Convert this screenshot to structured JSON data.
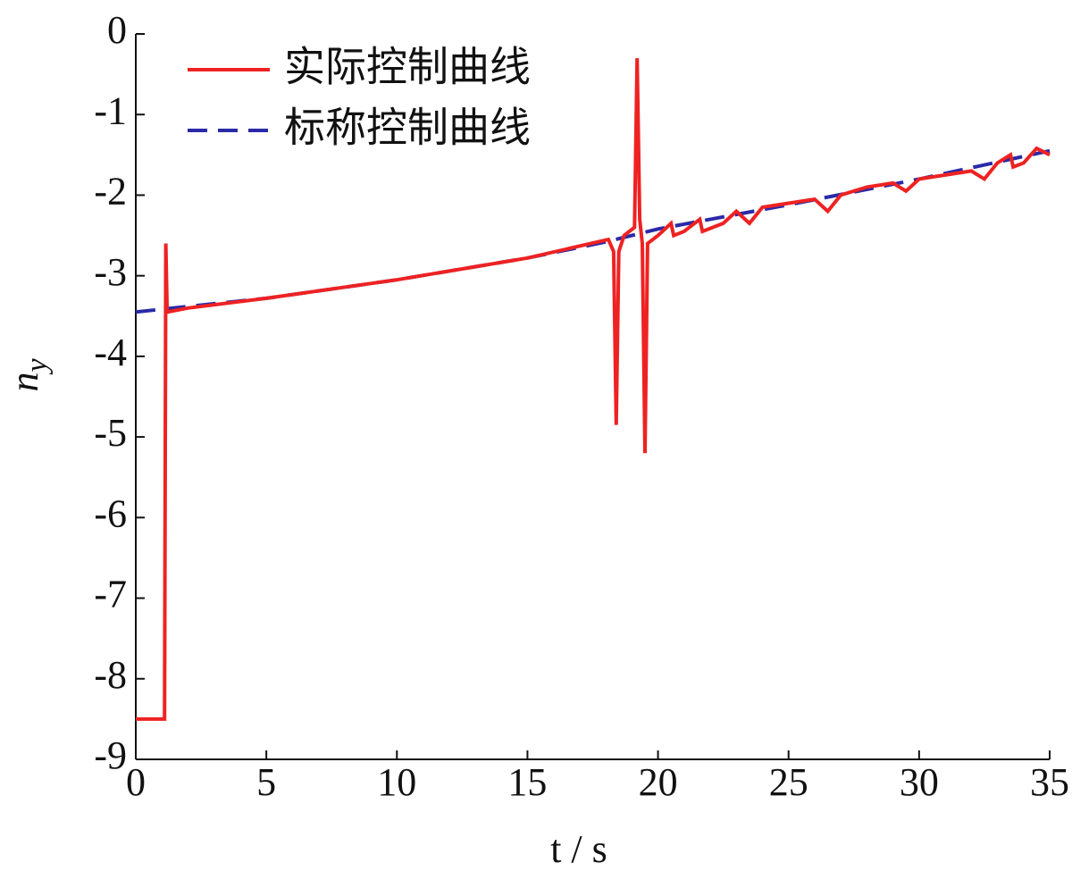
{
  "chart_data": {
    "type": "line",
    "xlabel": "t / s",
    "ylabel": {
      "text": "n",
      "subscript": "y"
    },
    "xlim": [
      0,
      35
    ],
    "xticks": [
      0,
      5,
      10,
      15,
      20,
      25,
      30,
      35
    ],
    "ylim": [
      -9,
      0
    ],
    "yticks": [
      -9,
      -8,
      -7,
      -6,
      -5,
      -4,
      -3,
      -2,
      -1,
      0
    ],
    "legend": "upper-left",
    "series": [
      {
        "name": "实际控制曲线",
        "color": "#ee2222",
        "dash": "solid",
        "x": [
          0,
          1.1,
          1.15,
          1.2,
          2,
          5,
          10,
          15,
          18.1,
          18.3,
          18.4,
          18.5,
          18.7,
          19.1,
          19.2,
          19.3,
          19.4,
          19.5,
          19.6,
          20,
          20.5,
          20.6,
          21,
          21.6,
          21.7,
          22.5,
          23,
          23.5,
          24,
          25,
          26,
          26.5,
          27,
          28,
          29,
          29.5,
          30,
          31,
          32,
          32.5,
          33,
          33.5,
          33.6,
          34,
          34.5,
          35
        ],
        "values": [
          -8.5,
          -8.5,
          -2.6,
          -3.45,
          -3.4,
          -3.28,
          -3.05,
          -2.78,
          -2.55,
          -2.7,
          -4.85,
          -2.7,
          -2.5,
          -2.4,
          -0.3,
          -2.3,
          -2.6,
          -5.2,
          -2.6,
          -2.5,
          -2.35,
          -2.5,
          -2.45,
          -2.3,
          -2.45,
          -2.35,
          -2.2,
          -2.35,
          -2.15,
          -2.1,
          -2.05,
          -2.2,
          -2.0,
          -1.9,
          -1.85,
          -1.95,
          -1.8,
          -1.75,
          -1.7,
          -1.8,
          -1.6,
          -1.5,
          -1.65,
          -1.6,
          -1.42,
          -1.5
        ]
      },
      {
        "name": "标称控制曲线",
        "color": "#2a2aa8",
        "dash": "dashed",
        "x": [
          0,
          2,
          5,
          10,
          15,
          18,
          20,
          25,
          30,
          35
        ],
        "values": [
          -3.45,
          -3.38,
          -3.28,
          -3.05,
          -2.78,
          -2.58,
          -2.42,
          -2.12,
          -1.8,
          -1.45
        ]
      }
    ]
  }
}
